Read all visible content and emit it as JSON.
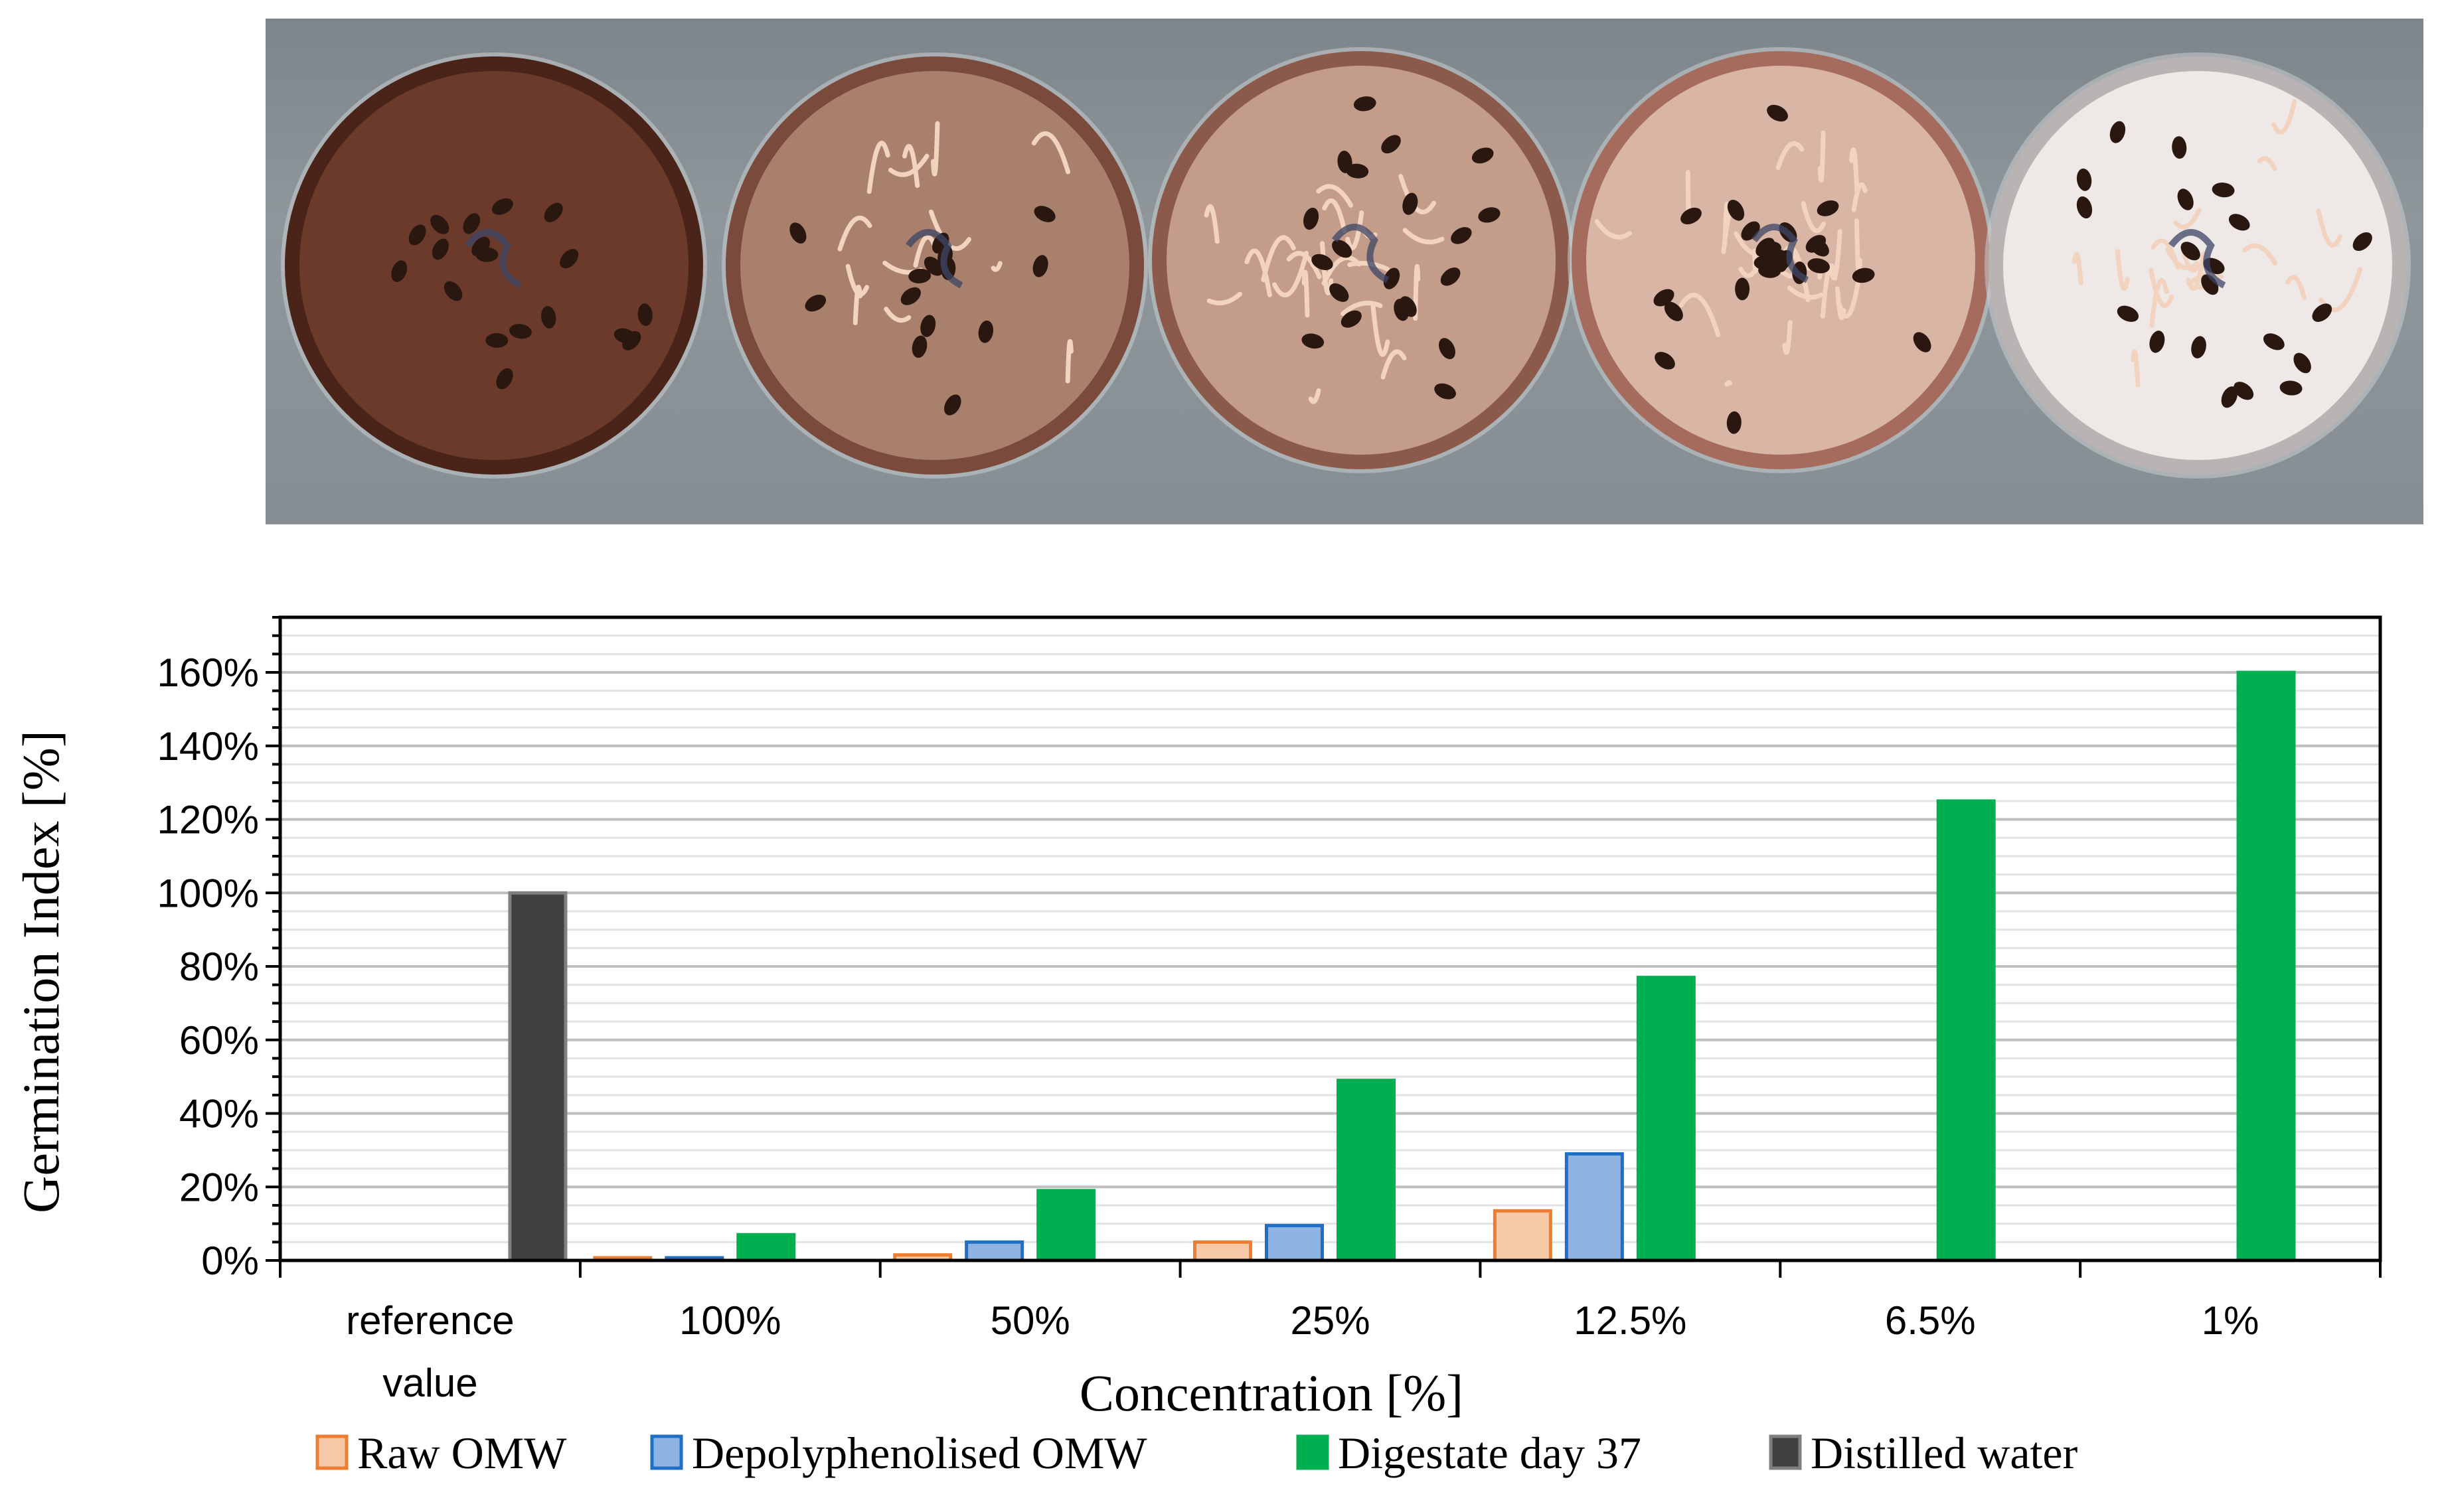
{
  "photo": {
    "description_icon": "petri-dish-photo",
    "dishes": [
      {
        "tone": "#6b3a2a",
        "rim": "#4a2418",
        "seed_count": 18,
        "sprout_count": 0
      },
      {
        "tone": "#a9806c",
        "rim": "#7a4a3c",
        "seed_count": 14,
        "sprout_count": 14
      },
      {
        "tone": "#c49c8a",
        "rim": "#8b5a4a",
        "seed_count": 20,
        "sprout_count": 22
      },
      {
        "tone": "#d9b5a5",
        "rim": "#a56b5d",
        "seed_count": 24,
        "sprout_count": 26
      },
      {
        "tone": "#eee8e6",
        "rim": "#b9b4b3",
        "seed_count": 20,
        "sprout_count": 18
      }
    ]
  },
  "chart_data": {
    "type": "bar",
    "ylabel": "Germination Index [%]",
    "xlabel": "Concentration [%]",
    "ylim": [
      0,
      175
    ],
    "yticks": [
      0,
      20,
      40,
      60,
      80,
      100,
      120,
      140,
      160
    ],
    "ytick_labels": [
      "0%",
      "20%",
      "40%",
      "60%",
      "80%",
      "100%",
      "120%",
      "140%",
      "160%"
    ],
    "grid": true,
    "legend_position": "bottom",
    "categories": [
      {
        "line1": "reference",
        "line2": "value"
      },
      {
        "line1": "100%",
        "line2": ""
      },
      {
        "line1": "50%",
        "line2": ""
      },
      {
        "line1": "25%",
        "line2": ""
      },
      {
        "line1": "12.5%",
        "line2": ""
      },
      {
        "line1": "6.5%",
        "line2": ""
      },
      {
        "line1": "1%",
        "line2": ""
      }
    ],
    "series": [
      {
        "name": "Raw OMW",
        "fill": "#f8c9a8",
        "stroke": "#ed7d31",
        "values": [
          null,
          0,
          1.5,
          5,
          13.5,
          null,
          null
        ]
      },
      {
        "name": "Depolyphenolised OMW",
        "fill": "#8fb4e3",
        "stroke": "#1f6fc5",
        "values": [
          null,
          0.5,
          5,
          9.5,
          29,
          null,
          null
        ]
      },
      {
        "name": "Digestate day 37",
        "fill": "#00b050",
        "stroke": "#00b050",
        "values": [
          null,
          7,
          19,
          49,
          77,
          125,
          160
        ]
      },
      {
        "name": "Distilled water",
        "fill": "#404040",
        "stroke": "#808080",
        "values": [
          100,
          null,
          null,
          null,
          null,
          null,
          null
        ]
      }
    ]
  }
}
